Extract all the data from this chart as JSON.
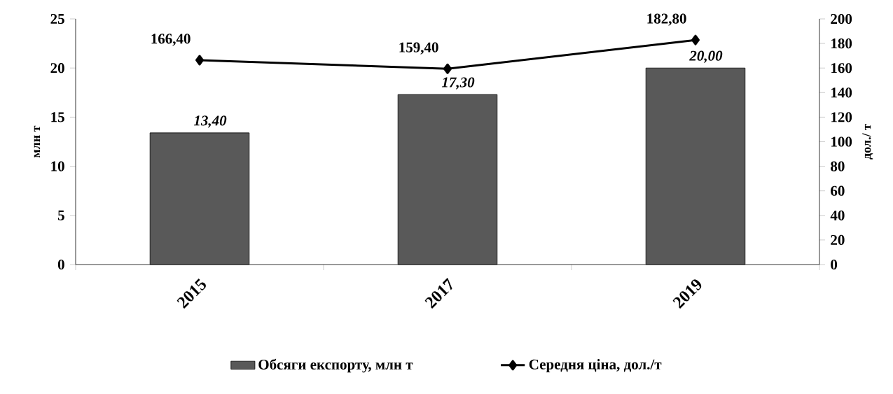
{
  "chart_data": {
    "type": "bar",
    "categories": [
      "2015",
      "2017",
      "2019"
    ],
    "ylabel": "млн т",
    "y2label": "дол./ т",
    "ylim": [
      0,
      25
    ],
    "yticks": [
      0,
      5,
      10,
      15,
      20,
      25
    ],
    "y2lim": [
      0,
      200
    ],
    "y2ticks": [
      0,
      20,
      40,
      60,
      80,
      100,
      120,
      140,
      160,
      180,
      200
    ],
    "legend": "bottom",
    "series": [
      {
        "name": "Обсяги експорту, млн т",
        "color": "#595959",
        "values": [
          13.4,
          17.3,
          20.0
        ],
        "value_labels": [
          "13,40",
          "17,30",
          "20,00"
        ]
      },
      {
        "name": "Середня ціна, дол./т",
        "type": "line",
        "axis": "y2",
        "color": "#000000",
        "marker": "diamond",
        "values": [
          166.4,
          159.4,
          182.8
        ],
        "value_labels": [
          "166,40",
          "159,40",
          "182,80"
        ]
      }
    ]
  }
}
